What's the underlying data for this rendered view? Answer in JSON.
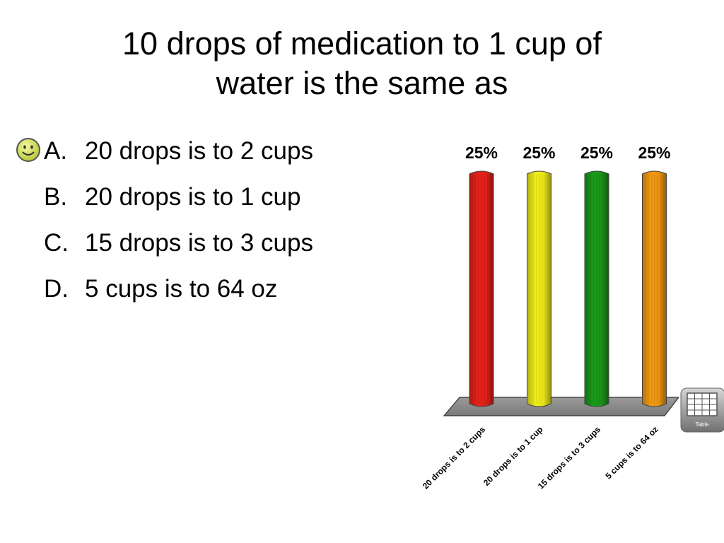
{
  "slide": {
    "title_line1": "10 drops of medication to 1 cup of",
    "title_line2": "water is the same as"
  },
  "answers": [
    {
      "letter": "A.",
      "text": "20 drops is to 2 cups",
      "correct": true
    },
    {
      "letter": "B.",
      "text": "20 drops is to 1 cup"
    },
    {
      "letter": "C.",
      "text": "15 drops is to 3 cups"
    },
    {
      "letter": "D.",
      "text": "5 cups is to 64 oz"
    }
  ],
  "correct_marker_icon": "smiley-face-icon",
  "table_button": {
    "label": "Table",
    "icon": "table-grid-icon"
  },
  "chart_data": {
    "type": "bar",
    "categories": [
      "20 drops is to 2 cups",
      "20 drops is to 1 cup",
      "15 drops is to 3 cups",
      "5 cups is to 64 oz"
    ],
    "values": [
      25,
      25,
      25,
      25
    ],
    "data_labels": [
      "25%",
      "25%",
      "25%",
      "25%"
    ],
    "colors": [
      "#e8221a",
      "#f2ee1a",
      "#1a9a1a",
      "#f39a12"
    ],
    "ylim": [
      0,
      25
    ],
    "title": "",
    "xlabel": "",
    "ylabel": "",
    "grid": false,
    "legend": "none",
    "bar_shape": "cylinder",
    "floor": "3d-gray"
  }
}
